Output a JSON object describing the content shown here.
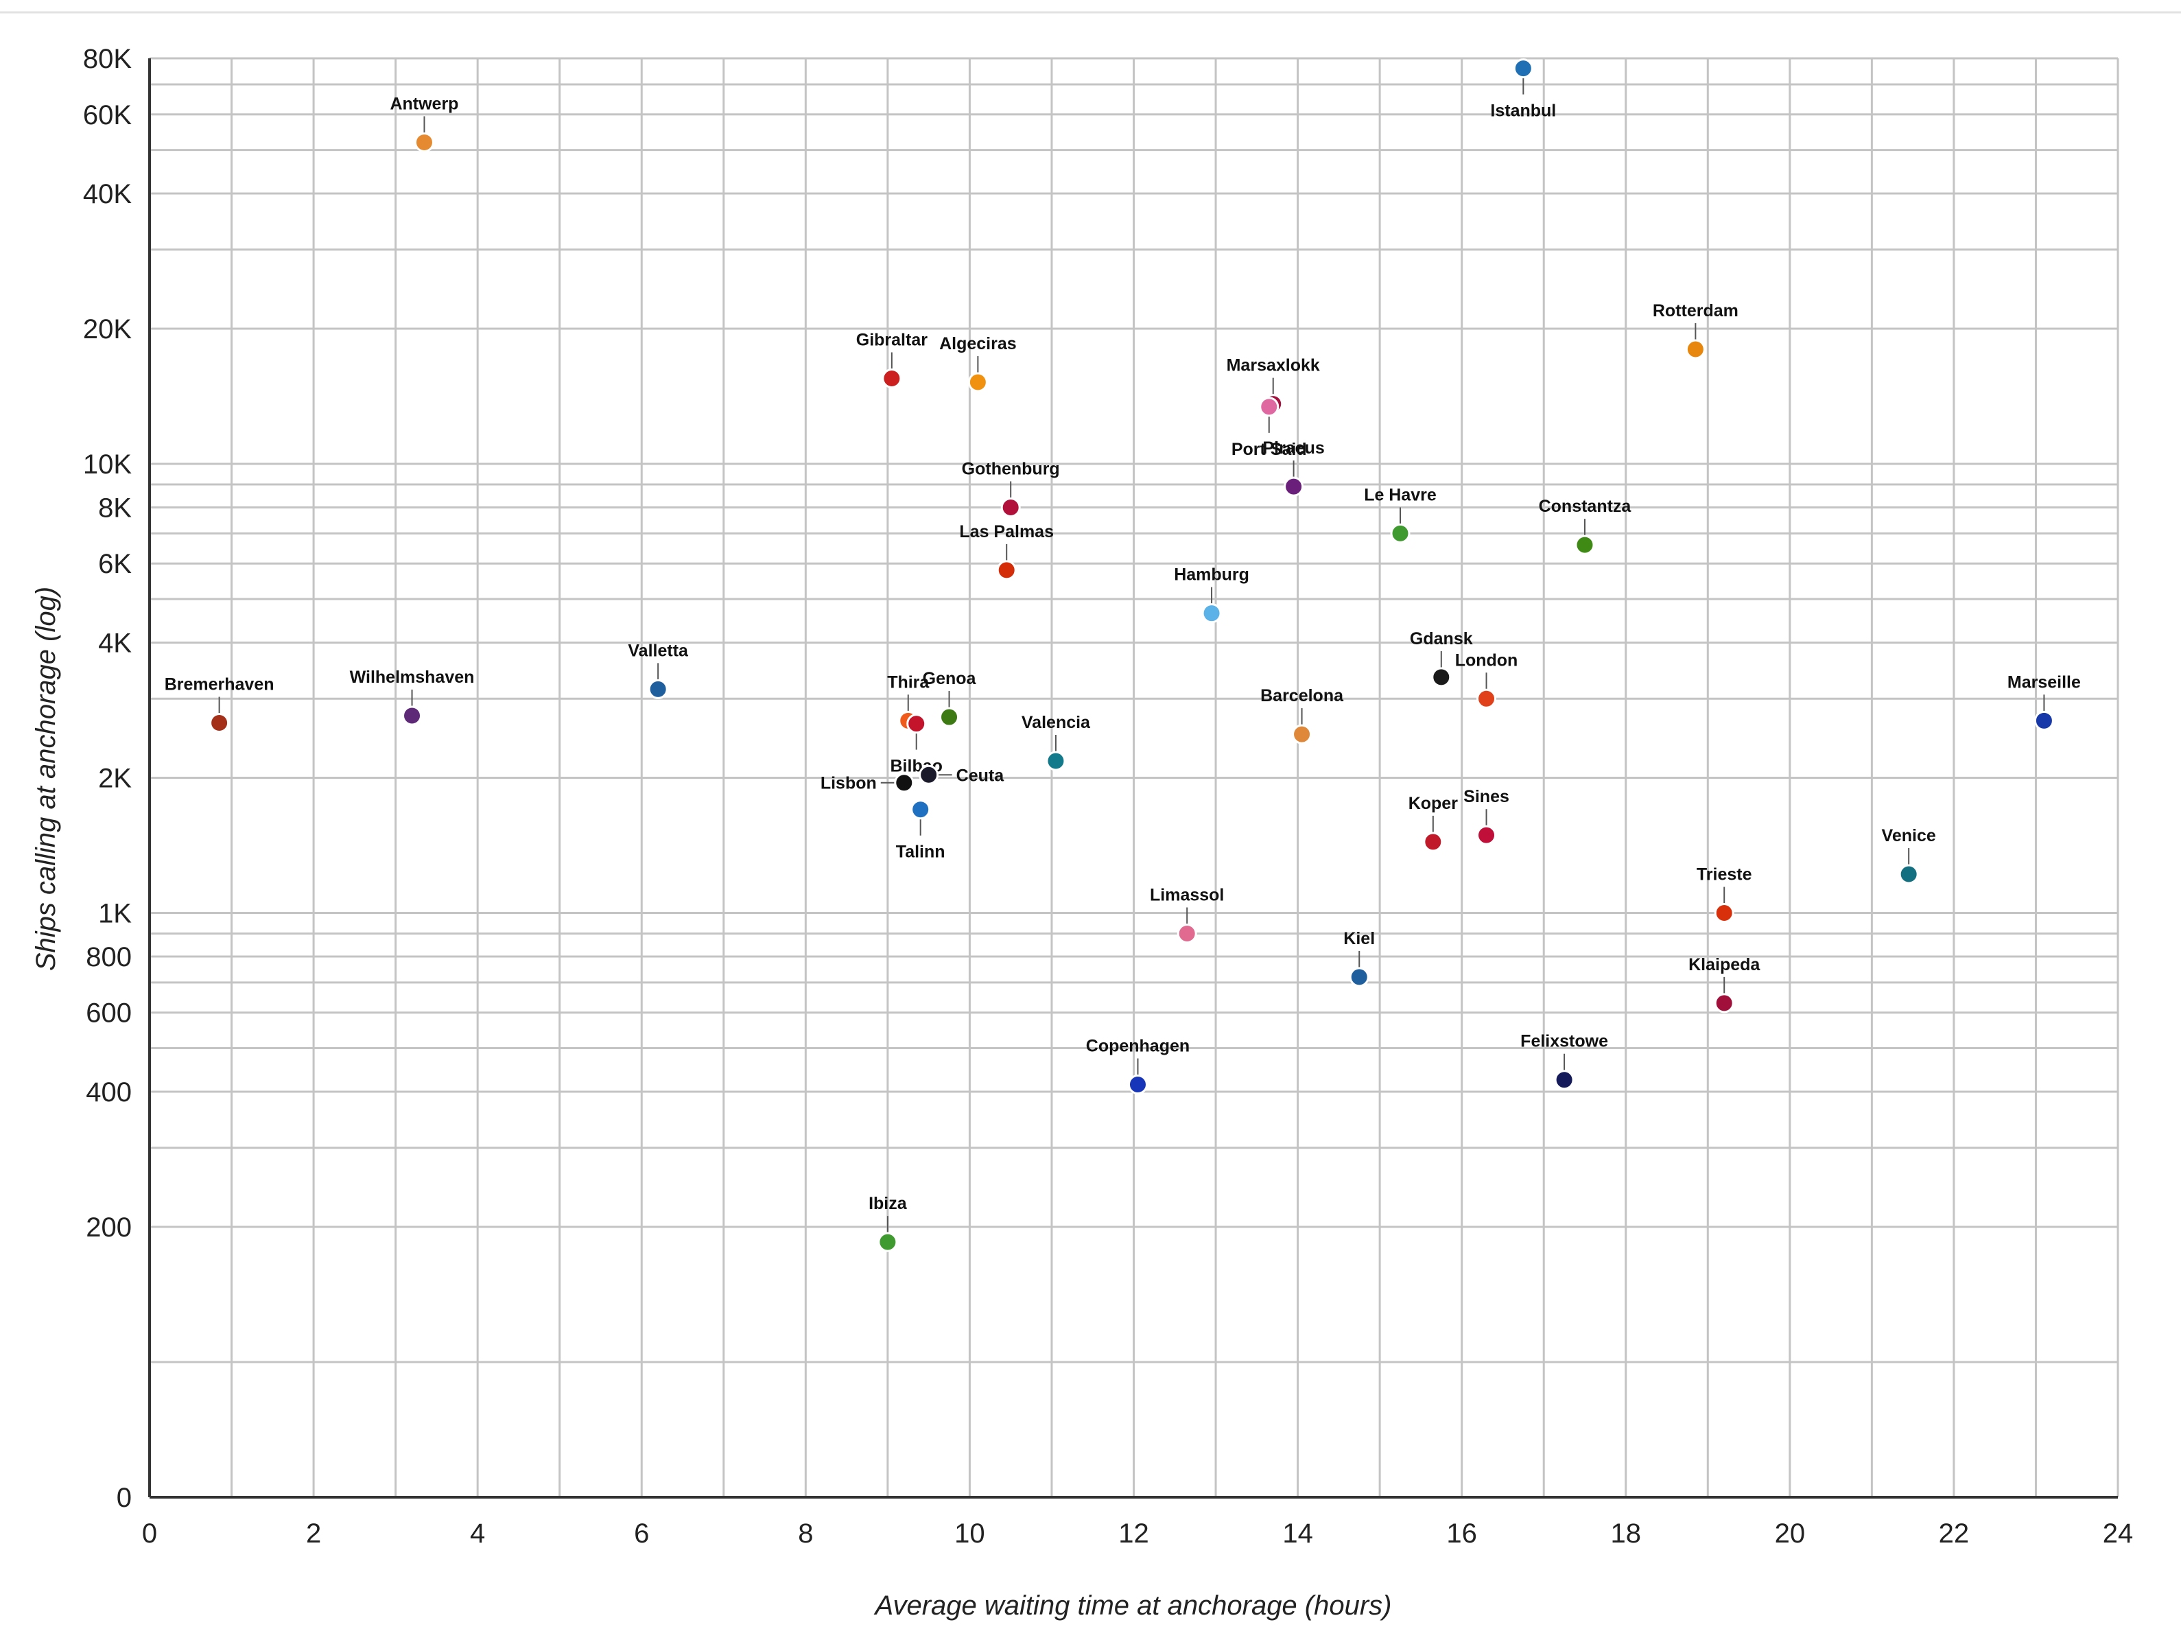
{
  "chart_data": {
    "type": "scatter",
    "title": "",
    "xlabel": "Average waiting time at anchorage (hours)",
    "ylabel": "Ships calling at anchorage (log)",
    "xlim": [
      0,
      24
    ],
    "x_ticks": [
      0,
      2,
      4,
      6,
      8,
      10,
      12,
      14,
      16,
      18,
      20,
      22,
      24
    ],
    "y_scale": "log",
    "ylim": [
      0,
      80000
    ],
    "y_ticks": [
      {
        "value": 0,
        "label": "0"
      },
      {
        "value": 200,
        "label": "200"
      },
      {
        "value": 400,
        "label": "400"
      },
      {
        "value": 600,
        "label": "600"
      },
      {
        "value": 800,
        "label": "800"
      },
      {
        "value": 1000,
        "label": "1K"
      },
      {
        "value": 2000,
        "label": "2K"
      },
      {
        "value": 4000,
        "label": "4K"
      },
      {
        "value": 6000,
        "label": "6K"
      },
      {
        "value": 8000,
        "label": "8K"
      },
      {
        "value": 10000,
        "label": "10K"
      },
      {
        "value": 20000,
        "label": "20K"
      },
      {
        "value": 40000,
        "label": "40K"
      },
      {
        "value": 60000,
        "label": "60K"
      },
      {
        "value": 80000,
        "label": "80K"
      }
    ],
    "grid": true,
    "legend": "none",
    "points": [
      {
        "label": "Istanbul",
        "x": 16.75,
        "y": 76000,
        "color": "#1f6fb5",
        "label_pos": "below"
      },
      {
        "label": "Antwerp",
        "x": 3.35,
        "y": 52000,
        "color": "#e58a30",
        "label_pos": "above"
      },
      {
        "label": "Rotterdam",
        "x": 18.85,
        "y": 18000,
        "color": "#e8870e",
        "label_pos": "above"
      },
      {
        "label": "Gibraltar",
        "x": 9.05,
        "y": 15500,
        "color": "#cc1f1f",
        "label_pos": "above"
      },
      {
        "label": "Algeciras",
        "x": 10.1,
        "y": 15200,
        "color": "#f0920f",
        "label_pos": "above"
      },
      {
        "label": "Marsaxlokk",
        "x": 13.7,
        "y": 13600,
        "color": "#a4113f",
        "label_pos": "above"
      },
      {
        "label": "Port Said",
        "x": 13.65,
        "y": 13400,
        "color": "#e068a0",
        "label_pos": "below"
      },
      {
        "label": "Piraeus",
        "x": 13.95,
        "y": 8900,
        "color": "#6a1f7a",
        "label_pos": "above"
      },
      {
        "label": "Gothenburg",
        "x": 10.5,
        "y": 8000,
        "color": "#b0103a",
        "label_pos": "above"
      },
      {
        "label": "Le Havre",
        "x": 15.25,
        "y": 7000,
        "color": "#3f9a2f",
        "label_pos": "above"
      },
      {
        "label": "Constantza",
        "x": 17.5,
        "y": 6600,
        "color": "#3e8a15",
        "label_pos": "above"
      },
      {
        "label": "Las Palmas",
        "x": 10.45,
        "y": 5800,
        "color": "#d42d0a",
        "label_pos": "above"
      },
      {
        "label": "Hamburg",
        "x": 12.95,
        "y": 4650,
        "color": "#5ab2e8",
        "label_pos": "above"
      },
      {
        "label": "Gdansk",
        "x": 15.75,
        "y": 3350,
        "color": "#1a1a1a",
        "label_pos": "above"
      },
      {
        "label": "Valletta",
        "x": 6.2,
        "y": 3150,
        "color": "#1f5f9e",
        "label_pos": "above"
      },
      {
        "label": "London",
        "x": 16.3,
        "y": 3000,
        "color": "#e0401a",
        "label_pos": "above"
      },
      {
        "label": "Wilhelmshaven",
        "x": 3.2,
        "y": 2750,
        "color": "#5e2a78",
        "label_pos": "above"
      },
      {
        "label": "Genoa",
        "x": 9.75,
        "y": 2730,
        "color": "#3e7a14",
        "label_pos": "above"
      },
      {
        "label": "Thira",
        "x": 9.25,
        "y": 2680,
        "color": "#f05a1a",
        "label_pos": "above"
      },
      {
        "label": "Bilbao",
        "x": 9.35,
        "y": 2640,
        "color": "#c4142b",
        "label_pos": "below"
      },
      {
        "label": "Bremerhaven",
        "x": 0.85,
        "y": 2650,
        "color": "#a4301a",
        "label_pos": "above"
      },
      {
        "label": "Marseille",
        "x": 23.1,
        "y": 2680,
        "color": "#1638a8",
        "label_pos": "above"
      },
      {
        "label": "Barcelona",
        "x": 14.05,
        "y": 2500,
        "color": "#e0883a",
        "label_pos": "above"
      },
      {
        "label": "Valencia",
        "x": 11.05,
        "y": 2180,
        "color": "#127a8a",
        "label_pos": "above"
      },
      {
        "label": "Ceuta",
        "x": 9.5,
        "y": 2030,
        "color": "#1a1a2a",
        "label_pos": "right"
      },
      {
        "label": "Lisbon",
        "x": 9.2,
        "y": 1950,
        "color": "#111111",
        "label_pos": "left"
      },
      {
        "label": "Talinn",
        "x": 9.4,
        "y": 1700,
        "color": "#1f70c0",
        "label_pos": "below"
      },
      {
        "label": "Sines",
        "x": 16.3,
        "y": 1490,
        "color": "#c0103a",
        "label_pos": "above"
      },
      {
        "label": "Koper",
        "x": 15.65,
        "y": 1440,
        "color": "#c01a2a",
        "label_pos": "above"
      },
      {
        "label": "Venice",
        "x": 21.45,
        "y": 1220,
        "color": "#127080",
        "label_pos": "above"
      },
      {
        "label": "Trieste",
        "x": 19.2,
        "y": 1000,
        "color": "#d8300a",
        "label_pos": "above"
      },
      {
        "label": "Limassol",
        "x": 12.65,
        "y": 900,
        "color": "#e06a90",
        "label_pos": "above"
      },
      {
        "label": "Kiel",
        "x": 14.75,
        "y": 720,
        "color": "#1f5f9e",
        "label_pos": "above"
      },
      {
        "label": "Klaipeda",
        "x": 19.2,
        "y": 630,
        "color": "#a0103a",
        "label_pos": "above"
      },
      {
        "label": "Felixstowe",
        "x": 17.25,
        "y": 425,
        "color": "#141a5a",
        "label_pos": "above"
      },
      {
        "label": "Copenhagen",
        "x": 12.05,
        "y": 415,
        "color": "#1635b8",
        "label_pos": "above"
      },
      {
        "label": "Ibiza",
        "x": 9.0,
        "y": 185,
        "color": "#3f9a2f",
        "label_pos": "above"
      }
    ]
  }
}
